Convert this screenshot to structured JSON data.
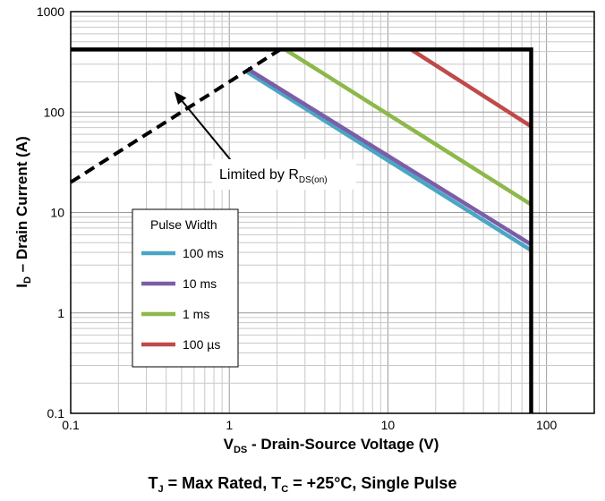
{
  "chart_data": {
    "type": "line",
    "x_scale": "log",
    "y_scale": "log",
    "xlim": [
      0.1,
      200
    ],
    "ylim": [
      0.1,
      1000
    ],
    "x_ticks": [
      {
        "value": 0.1,
        "label": "0.1"
      },
      {
        "value": 1,
        "label": "1"
      },
      {
        "value": 10,
        "label": "10"
      },
      {
        "value": 100,
        "label": "100"
      }
    ],
    "y_ticks": [
      {
        "value": 0.1,
        "label": "0.1"
      },
      {
        "value": 1,
        "label": "1"
      },
      {
        "value": 10,
        "label": "10"
      },
      {
        "value": 100,
        "label": "100"
      },
      {
        "value": 1000,
        "label": "1000"
      }
    ],
    "grid": true,
    "xlabel": {
      "main": "V",
      "sub": "DS",
      "rest": "  - Drain-Source Voltage (V)"
    },
    "ylabel": {
      "main": "I",
      "sub": "D",
      "rest": " – Drain Current (A)"
    },
    "caption": {
      "p1": "T",
      "s1": "J",
      "p2": " = Max Rated, T",
      "s2": "C",
      "p3": " = +25°C, Single Pulse"
    },
    "boundary": {
      "color": "#000000",
      "current_limit": 420,
      "voltage_limit": 80,
      "points": [
        [
          0.1,
          420
        ],
        [
          80,
          420
        ],
        [
          80,
          0.1
        ]
      ]
    },
    "rds_on_limit": {
      "color": "#000000",
      "style": "dashed",
      "points": [
        [
          0.1,
          20
        ],
        [
          2.1,
          420
        ]
      ]
    },
    "annotation": {
      "text": "Limited by R",
      "sub": "DS(on)",
      "arrow_target": [
        0.45,
        160
      ]
    },
    "series": [
      {
        "name": "100 ms",
        "color": "#4aa6c4",
        "points": [
          [
            1.3,
            250
          ],
          [
            80,
            4.2
          ]
        ]
      },
      {
        "name": "10 ms",
        "color": "#7b5ea7",
        "points": [
          [
            1.3,
            270
          ],
          [
            80,
            4.8
          ]
        ]
      },
      {
        "name": "1 ms",
        "color": "#8db84a",
        "points": [
          [
            2.25,
            420
          ],
          [
            80,
            12
          ]
        ]
      },
      {
        "name": "100 µs",
        "color": "#bf4a4a",
        "points": [
          [
            14,
            420
          ],
          [
            80,
            72
          ]
        ]
      }
    ],
    "legend": {
      "title": "Pulse Width",
      "placement": "lower-left"
    }
  }
}
